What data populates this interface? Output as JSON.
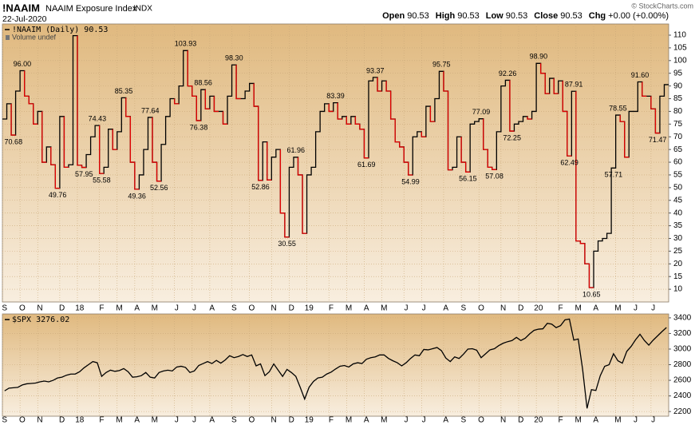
{
  "header": {
    "symbol": "!NAAIM",
    "name": "NAAIM Exposure Index",
    "exchange": "INDX",
    "date": "22-Jul-2020",
    "quote": [
      {
        "label": "Open",
        "value": "90.53"
      },
      {
        "label": "High",
        "value": "90.53"
      },
      {
        "label": "Low",
        "value": "90.53"
      },
      {
        "label": "Close",
        "value": "90.53"
      },
      {
        "label": "Chg",
        "value": "+0.00 (+0.00%)"
      }
    ],
    "credit": "© StockCharts.com"
  },
  "chart_data": [
    {
      "type": "line",
      "step": true,
      "legend": "!NAAIM (Daily) 90.53",
      "note": "Volume undef",
      "categories": [
        "S",
        null,
        null,
        null,
        "O",
        null,
        null,
        null,
        "N",
        null,
        null,
        null,
        null,
        "D",
        null,
        null,
        null,
        "18",
        null,
        null,
        null,
        null,
        "F",
        null,
        null,
        null,
        "M",
        null,
        null,
        null,
        "A",
        null,
        null,
        null,
        "M",
        null,
        null,
        null,
        null,
        "J",
        null,
        null,
        null,
        "J",
        null,
        null,
        null,
        "A",
        null,
        null,
        null,
        null,
        "S",
        null,
        null,
        null,
        "O",
        null,
        null,
        null,
        null,
        "N",
        null,
        null,
        null,
        "D",
        null,
        null,
        null,
        "19",
        null,
        null,
        null,
        null,
        "F",
        null,
        null,
        null,
        "M",
        null,
        null,
        null,
        "A",
        null,
        null,
        null,
        "M",
        null,
        null,
        null,
        null,
        "J",
        null,
        null,
        null,
        "J",
        null,
        null,
        null,
        null,
        "A",
        null,
        null,
        null,
        "S",
        null,
        null,
        null,
        "O",
        null,
        null,
        null,
        null,
        "N",
        null,
        null,
        null,
        "D",
        null,
        null,
        null,
        "20",
        null,
        null,
        null,
        null,
        "F",
        null,
        null,
        null,
        "M",
        null,
        null,
        null,
        "A",
        null,
        null,
        null,
        null,
        "M",
        null,
        null,
        null,
        "J",
        null,
        null,
        null,
        "J",
        null,
        null,
        null
      ],
      "values": [
        77,
        83,
        70.68,
        88,
        96,
        86,
        83,
        75,
        80,
        60,
        66,
        59,
        49.76,
        78,
        58,
        59,
        109.8,
        58.8,
        57.95,
        63,
        70,
        74.43,
        55.58,
        58,
        73,
        65,
        72,
        85.35,
        78,
        60,
        49.36,
        55,
        65,
        77.64,
        60,
        52.56,
        67,
        78,
        85,
        83,
        90,
        103.93,
        90,
        86,
        76.38,
        88.56,
        81,
        86,
        80,
        80,
        75,
        86,
        98.3,
        85,
        85,
        88,
        91,
        82,
        52.86,
        68,
        53,
        62,
        65,
        40,
        30.55,
        58,
        61.96,
        55,
        32,
        55,
        58,
        72,
        80,
        83,
        80,
        83.39,
        77,
        78,
        75,
        78,
        75,
        73,
        61.69,
        92,
        93.37,
        88,
        92,
        88,
        77,
        68,
        66,
        60,
        54.99,
        70,
        72,
        70,
        82,
        76,
        85,
        95.75,
        88,
        57,
        58,
        70,
        60,
        56.15,
        75,
        76,
        77.09,
        65,
        58,
        57.08,
        72,
        90,
        92.26,
        72.25,
        75,
        76,
        78,
        77,
        80,
        98.9,
        95,
        87,
        93,
        87,
        92,
        80,
        62.49,
        87.91,
        29,
        28,
        20,
        10.65,
        25,
        29,
        30,
        32,
        57.71,
        78.55,
        76,
        62,
        80,
        80,
        91.6,
        86,
        86,
        81,
        71.47,
        86,
        90.53
      ],
      "value_labels": [
        null,
        null,
        "70.68",
        null,
        "96.00",
        null,
        null,
        null,
        null,
        null,
        null,
        null,
        "49.76",
        null,
        null,
        null,
        null,
        null,
        "57.95",
        null,
        null,
        "74.43",
        "55.58",
        null,
        null,
        null,
        null,
        "85.35",
        null,
        null,
        "49.36",
        null,
        null,
        "77.64",
        null,
        "52.56",
        null,
        null,
        null,
        null,
        null,
        "103.93",
        null,
        null,
        "76.38",
        "88.56",
        null,
        null,
        null,
        null,
        null,
        null,
        "98.30",
        null,
        null,
        null,
        null,
        null,
        "52.86",
        null,
        null,
        null,
        null,
        null,
        "30.55",
        null,
        "61.96",
        null,
        null,
        null,
        null,
        null,
        null,
        null,
        null,
        "83.39",
        null,
        null,
        null,
        null,
        null,
        null,
        "61.69",
        null,
        "93.37",
        null,
        null,
        null,
        null,
        null,
        null,
        null,
        "54.99",
        null,
        null,
        null,
        null,
        null,
        null,
        "95.75",
        null,
        null,
        null,
        null,
        null,
        "56.15",
        null,
        null,
        "77.09",
        null,
        null,
        "57.08",
        null,
        null,
        "92.26",
        "72.25",
        null,
        null,
        null,
        null,
        null,
        "98.90",
        null,
        null,
        null,
        null,
        null,
        null,
        "62.49",
        "87.91",
        null,
        null,
        null,
        "10.65",
        null,
        null,
        null,
        null,
        "57.71",
        "78.55",
        null,
        null,
        null,
        null,
        "91.60",
        null,
        null,
        null,
        "71.47",
        null,
        null
      ],
      "ylim": [
        5,
        114.4
      ],
      "yticks": [
        10,
        15,
        20,
        25,
        30,
        35,
        40,
        45,
        50,
        55,
        60,
        65,
        70,
        75,
        80,
        85,
        90,
        95,
        100,
        105,
        110
      ],
      "color": "#000000",
      "down_color": "#e00000",
      "grid": true
    },
    {
      "type": "line",
      "legend": "$SPX 3276.02",
      "categories": [
        "S",
        null,
        null,
        null,
        "O",
        null,
        null,
        null,
        "N",
        null,
        null,
        null,
        null,
        "D",
        null,
        null,
        null,
        "18",
        null,
        null,
        null,
        null,
        "F",
        null,
        null,
        null,
        "M",
        null,
        null,
        null,
        "A",
        null,
        null,
        null,
        "M",
        null,
        null,
        null,
        null,
        "J",
        null,
        null,
        null,
        "J",
        null,
        null,
        null,
        "A",
        null,
        null,
        null,
        null,
        "S",
        null,
        null,
        null,
        "O",
        null,
        null,
        null,
        null,
        "N",
        null,
        null,
        null,
        "D",
        null,
        null,
        null,
        "19",
        null,
        null,
        null,
        null,
        "F",
        null,
        null,
        null,
        "M",
        null,
        null,
        null,
        "A",
        null,
        null,
        null,
        "M",
        null,
        null,
        null,
        null,
        "J",
        null,
        null,
        null,
        "J",
        null,
        null,
        null,
        null,
        "A",
        null,
        null,
        null,
        "S",
        null,
        null,
        null,
        "O",
        null,
        null,
        null,
        null,
        "N",
        null,
        null,
        null,
        "D",
        null,
        null,
        null,
        "20",
        null,
        null,
        null,
        null,
        "F",
        null,
        null,
        null,
        "M",
        null,
        null,
        null,
        "A",
        null,
        null,
        null,
        null,
        "M",
        null,
        null,
        null,
        "J",
        null,
        null,
        null,
        "J",
        null,
        null,
        null
      ],
      "values": [
        2465,
        2500,
        2505,
        2510,
        2540,
        2555,
        2560,
        2565,
        2580,
        2590,
        2580,
        2600,
        2630,
        2640,
        2665,
        2680,
        2680,
        2710,
        2760,
        2800,
        2840,
        2825,
        2650,
        2700,
        2730,
        2715,
        2725,
        2750,
        2710,
        2640,
        2645,
        2660,
        2700,
        2640,
        2630,
        2700,
        2720,
        2730,
        2720,
        2770,
        2780,
        2765,
        2700,
        2720,
        2790,
        2815,
        2840,
        2815,
        2855,
        2820,
        2860,
        2915,
        2890,
        2905,
        2930,
        2905,
        2925,
        2785,
        2810,
        2660,
        2710,
        2810,
        2730,
        2650,
        2740,
        2700,
        2650,
        2510,
        2360,
        2510,
        2585,
        2630,
        2640,
        2680,
        2705,
        2745,
        2780,
        2790,
        2770,
        2810,
        2825,
        2815,
        2870,
        2890,
        2900,
        2925,
        2925,
        2880,
        2850,
        2825,
        2785,
        2825,
        2880,
        2925,
        2915,
        2995,
        2990,
        3005,
        3020,
        2980,
        2885,
        2840,
        2900,
        2880,
        2935,
        3000,
        3005,
        2985,
        2890,
        2940,
        2990,
        3005,
        3045,
        3075,
        3095,
        3110,
        3150,
        3110,
        3140,
        3195,
        3240,
        3255,
        3260,
        3330,
        3320,
        3275,
        3300,
        3375,
        3385,
        3115,
        3130,
        2740,
        2240,
        2480,
        2470,
        2660,
        2780,
        2800,
        2940,
        2850,
        2820,
        2970,
        3035,
        3120,
        3190,
        3110,
        3050,
        3115,
        3170,
        3225,
        3276.02
      ],
      "ylim": [
        2140,
        3450
      ],
      "yticks": [
        2200,
        2400,
        2600,
        2800,
        3000,
        3200,
        3400
      ],
      "color": "#000000",
      "grid": true
    }
  ]
}
